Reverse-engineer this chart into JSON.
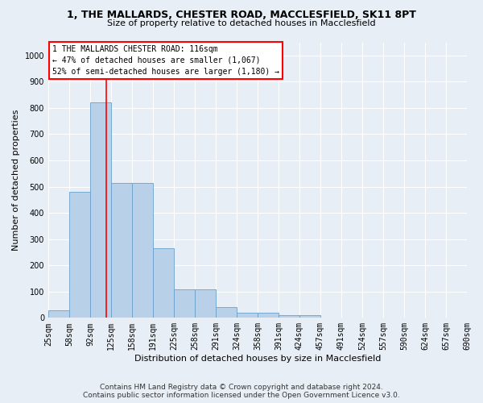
{
  "title_line1": "1, THE MALLARDS, CHESTER ROAD, MACCLESFIELD, SK11 8PT",
  "title_line2": "Size of property relative to detached houses in Macclesfield",
  "xlabel": "Distribution of detached houses by size in Macclesfield",
  "ylabel": "Number of detached properties",
  "bar_values": [
    30,
    480,
    820,
    515,
    515,
    265,
    110,
    110,
    40,
    20,
    20,
    10,
    10,
    0,
    0,
    0,
    0,
    0,
    0,
    0
  ],
  "bin_labels": [
    "25sqm",
    "58sqm",
    "92sqm",
    "125sqm",
    "158sqm",
    "191sqm",
    "225sqm",
    "258sqm",
    "291sqm",
    "324sqm",
    "358sqm",
    "391sqm",
    "424sqm",
    "457sqm",
    "491sqm",
    "524sqm",
    "557sqm",
    "590sqm",
    "624sqm",
    "657sqm",
    "690sqm"
  ],
  "bar_color": "#b8d0e8",
  "bar_edge_color": "#6aa0cc",
  "annotation_box_text": "1 THE MALLARDS CHESTER ROAD: 116sqm\n← 47% of detached houses are smaller (1,067)\n52% of semi-detached houses are larger (1,180) →",
  "red_line_x": 2.76,
  "ylim": [
    0,
    1050
  ],
  "yticks": [
    0,
    100,
    200,
    300,
    400,
    500,
    600,
    700,
    800,
    900,
    1000
  ],
  "footer_line1": "Contains HM Land Registry data © Crown copyright and database right 2024.",
  "footer_line2": "Contains public sector information licensed under the Open Government Licence v3.0.",
  "bg_color": "#e8eef5",
  "plot_bg_color": "#e8eef5",
  "grid_color": "#ffffff",
  "title1_fontsize": 9,
  "title2_fontsize": 8,
  "ylabel_fontsize": 8,
  "xlabel_fontsize": 8,
  "tick_fontsize": 7,
  "annot_fontsize": 7,
  "footer_fontsize": 6.5
}
